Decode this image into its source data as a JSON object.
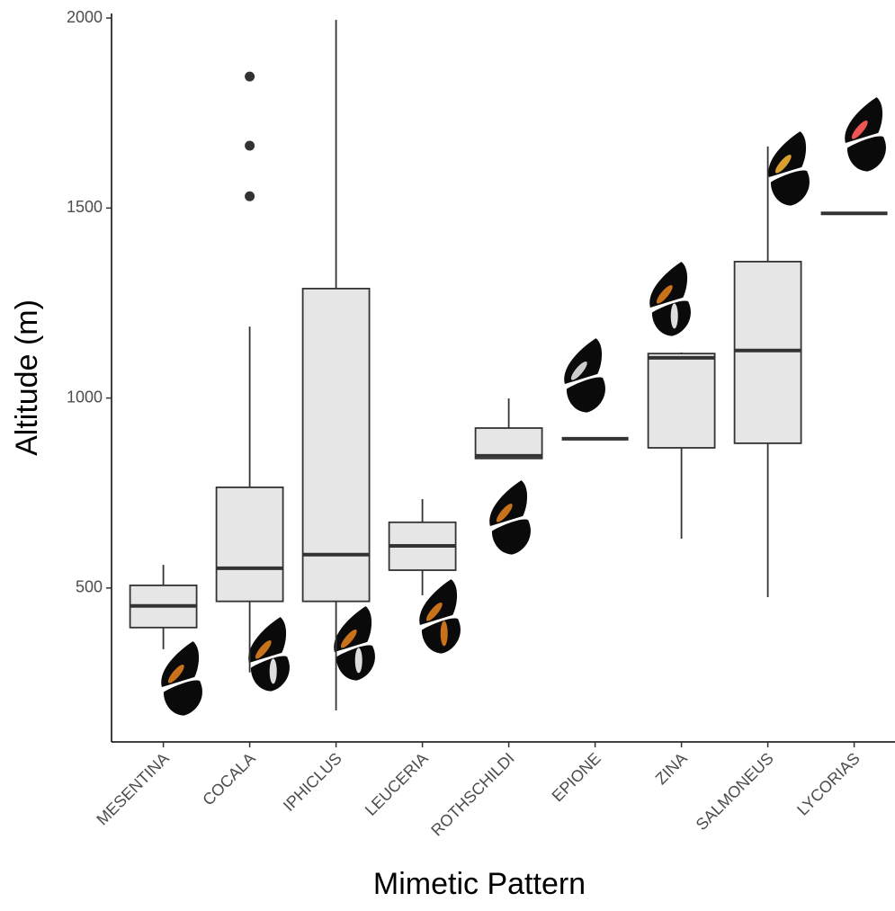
{
  "chart_data": {
    "type": "box",
    "x_label": "Mimetic Pattern",
    "y_label": "Altitude (m)",
    "categories": [
      "MESENTINA",
      "COCALA",
      "IPHICLUS",
      "LEUCERIA",
      "ROTHSCHILDI",
      "EPIONE",
      "ZINA",
      "SALMONEUS",
      "LYCORIAS"
    ],
    "boxes": [
      {
        "min": 339,
        "q1": 396,
        "median": 453,
        "q3": 507,
        "max": 561,
        "outliers": []
      },
      {
        "min": 278,
        "q1": 465,
        "median": 552,
        "q3": 765,
        "max": 1188,
        "outliers": [
          1531,
          1664,
          1846
        ]
      },
      {
        "min": 178,
        "q1": 465,
        "median": 588,
        "q3": 1288,
        "max": 1995,
        "outliers": []
      },
      {
        "min": 481,
        "q1": 547,
        "median": 611,
        "q3": 673,
        "max": 734,
        "outliers": []
      },
      {
        "min": 841,
        "q1": 841,
        "median": 848,
        "q3": 921,
        "max": 999,
        "outliers": []
      },
      {
        "min": 893,
        "q1": 893,
        "median": 893,
        "q3": 893,
        "max": 893,
        "outliers": []
      },
      {
        "min": 630,
        "q1": 869,
        "median": 1106,
        "q3": 1117,
        "max": 1120,
        "outliers": []
      },
      {
        "min": 476,
        "q1": 881,
        "median": 1125,
        "q3": 1359,
        "max": 1662,
        "outliers": []
      },
      {
        "min": 1486,
        "q1": 1486,
        "median": 1486,
        "q3": 1486,
        "max": 1486,
        "outliers": []
      }
    ],
    "box_color": "#e6e6e6",
    "line_color": "#333333",
    "ylim": [
      95,
      2012
    ],
    "yticks": [
      500,
      1000,
      1500,
      2000
    ],
    "grid": false
  }
}
